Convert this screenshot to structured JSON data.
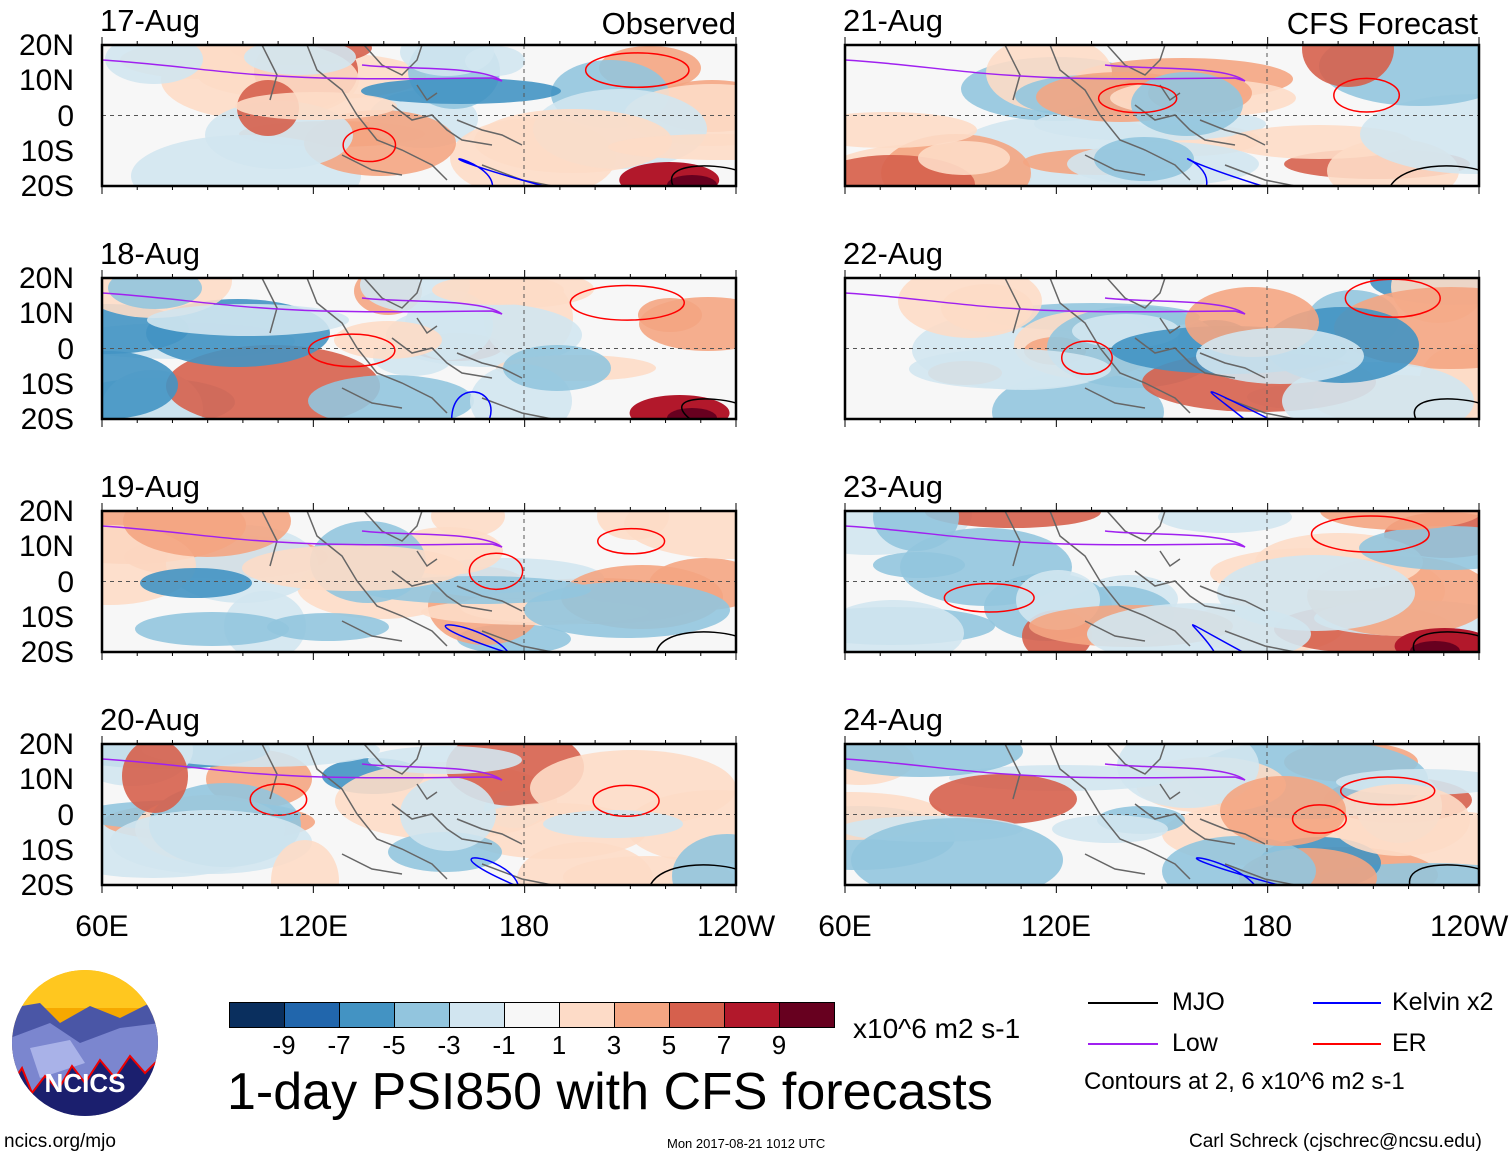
{
  "figure": {
    "title": "1-day PSI850 with CFS forecasts",
    "observed_label": "Observed",
    "forecast_label": "CFS Forecast",
    "units": "x10^6 m2 s-1",
    "contour_note": "Contours at 2, 6 x10^6 m2 s-1",
    "url": "ncics.org/mjo",
    "timestamp": "Mon 2017-08-21 1012 UTC",
    "author": "Carl Schreck (cjschrec@ncsu.edu)",
    "logo_text": "NCICS"
  },
  "axes": {
    "y_ticks": [
      "20N",
      "10N",
      "0",
      "10S",
      "20S"
    ],
    "x_ticks": [
      "60E",
      "120E",
      "180",
      "120W"
    ]
  },
  "panels": [
    {
      "date": "17-Aug",
      "group": "observed",
      "seed": 3
    },
    {
      "date": "18-Aug",
      "group": "observed",
      "seed": 7
    },
    {
      "date": "19-Aug",
      "group": "observed",
      "seed": 11
    },
    {
      "date": "20-Aug",
      "group": "observed",
      "seed": 19
    },
    {
      "date": "21-Aug",
      "group": "forecast",
      "seed": 23
    },
    {
      "date": "22-Aug",
      "group": "forecast",
      "seed": 29
    },
    {
      "date": "23-Aug",
      "group": "forecast",
      "seed": 31
    },
    {
      "date": "24-Aug",
      "group": "forecast",
      "seed": 37
    }
  ],
  "colorbar": {
    "colors": [
      "#0a2f5e",
      "#2166ac",
      "#4393c3",
      "#92c5de",
      "#d1e5f0",
      "#f7f7f7",
      "#fddbc7",
      "#f4a582",
      "#d6604d",
      "#b2182b",
      "#67001f"
    ],
    "labels": [
      "-9",
      "-7",
      "-5",
      "-3",
      "-1",
      "1",
      "3",
      "5",
      "7",
      "9"
    ]
  },
  "legend": [
    {
      "label": "MJO",
      "color": "#000000"
    },
    {
      "label": "Kelvin x2",
      "color": "#0000ff"
    },
    {
      "label": "Low",
      "color": "#a020f0"
    },
    {
      "label": "ER",
      "color": "#ff0000"
    }
  ]
}
